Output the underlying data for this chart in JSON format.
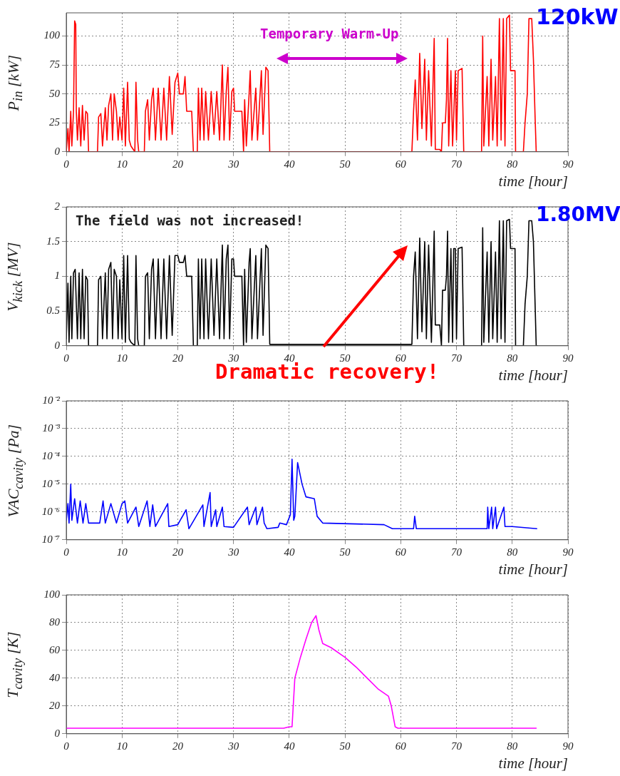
{
  "chart_data": [
    {
      "type": "line",
      "ylabel": "P$_{in}$ [kW]",
      "xlabel": "time [hour]",
      "annotations": [
        "Temporary Warm-Up",
        "120kW"
      ],
      "xlim": [
        0,
        90
      ],
      "xticks": [
        0,
        10,
        20,
        30,
        40,
        50,
        60,
        70,
        80,
        90
      ],
      "ylim": [
        0,
        120
      ],
      "yticks": [
        0,
        25,
        50,
        75,
        100
      ],
      "grid": true,
      "series": [
        {
          "color": "#ff0000",
          "x": [
            0,
            0.3,
            0.5,
            0.8,
            1,
            1.3,
            1.5,
            1.7,
            1.8,
            2,
            2.3,
            2.6,
            2.9,
            3.2,
            3.5,
            3.8,
            4,
            5.6,
            5.8,
            6.2,
            6.5,
            7,
            7.3,
            7.6,
            8,
            8.3,
            8.6,
            9,
            9.3,
            9.6,
            10,
            10.3,
            10.6,
            11,
            11.3,
            11.6,
            12.3,
            12.5,
            12.8,
            13,
            14,
            14.2,
            14.6,
            14.9,
            15.3,
            15.6,
            16,
            16.5,
            17,
            17.5,
            18,
            18.5,
            19,
            19.5,
            20,
            20.3,
            21,
            21.3,
            21.6,
            22.5,
            22.8,
            23.5,
            23.7,
            24,
            24.3,
            24.7,
            25,
            25.5,
            26,
            26.5,
            27,
            27.5,
            28,
            28.3,
            28.7,
            29,
            29.3,
            29.7,
            30,
            30.2,
            31.5,
            31.8,
            32,
            32.3,
            32.8,
            33,
            33.3,
            34,
            34.3,
            35,
            35.3,
            35.8,
            36.2,
            36.5,
            62,
            62.3,
            62.6,
            63,
            63.4,
            63.8,
            64.3,
            64.6,
            65,
            65.5,
            66,
            66.2,
            67,
            67.3,
            67.5,
            68,
            68.2,
            68.4,
            68.6,
            69,
            69.3,
            69.8,
            70,
            70.3,
            71,
            71.3,
            74.5,
            74.7,
            74.9,
            75.5,
            75.8,
            76.2,
            76.5,
            77,
            77.3,
            77.7,
            78,
            78.4,
            78.7,
            79,
            79.5,
            79.7,
            80.5,
            80.6,
            82,
            82.3,
            82.7,
            83,
            83.5,
            83.8,
            84.1,
            84.3,
            84.5
          ],
          "values": [
            0,
            20,
            0,
            35,
            5,
            35,
            113,
            110,
            35,
            10,
            38,
            5,
            40,
            10,
            35,
            33,
            0,
            0,
            30,
            33,
            5,
            38,
            10,
            40,
            50,
            10,
            50,
            35,
            10,
            30,
            10,
            55,
            5,
            60,
            10,
            5,
            0,
            60,
            10,
            0,
            0,
            35,
            45,
            10,
            45,
            55,
            10,
            55,
            10,
            55,
            10,
            65,
            15,
            60,
            68,
            50,
            50,
            65,
            35,
            35,
            0,
            0,
            55,
            10,
            55,
            10,
            52,
            10,
            52,
            15,
            52,
            10,
            75,
            10,
            52,
            73,
            10,
            52,
            55,
            35,
            35,
            0,
            45,
            5,
            50,
            70,
            10,
            55,
            10,
            70,
            15,
            73,
            70,
            0,
            0,
            35,
            62,
            10,
            85,
            20,
            80,
            10,
            70,
            5,
            98,
            2,
            2,
            0,
            25,
            25,
            45,
            98,
            5,
            70,
            5,
            70,
            10,
            70,
            72,
            0,
            0,
            100,
            5,
            65,
            5,
            80,
            10,
            65,
            5,
            115,
            10,
            115,
            5,
            115,
            118,
            70,
            70,
            0,
            0,
            25,
            50,
            115,
            115,
            80,
            30,
            0,
            0
          ]
        }
      ]
    },
    {
      "type": "line",
      "ylabel": "V$_{kick}$ [MV]",
      "xlabel": "time [hour]",
      "annotations": [
        "The field was not increased!",
        "1.80MV",
        "Dramatic recovery!"
      ],
      "xlim": [
        0,
        90
      ],
      "xticks": [
        0,
        10,
        20,
        30,
        40,
        50,
        60,
        70,
        80,
        90
      ],
      "ylim": [
        0,
        2
      ],
      "yticks": [
        0,
        0.5,
        1,
        1.5,
        2
      ],
      "grid": true,
      "series": [
        {
          "color": "#000000",
          "x": [
            0,
            0.3,
            0.5,
            0.8,
            1,
            1.3,
            1.6,
            2,
            2.3,
            2.6,
            2.9,
            3.2,
            3.5,
            3.8,
            4,
            5.6,
            5.8,
            6.2,
            6.5,
            7,
            7.3,
            7.6,
            8,
            8.3,
            8.6,
            9,
            9.3,
            9.6,
            10,
            10.3,
            10.6,
            11,
            11.3,
            11.6,
            12.3,
            12.5,
            12.8,
            13,
            14,
            14.2,
            14.6,
            14.9,
            15.3,
            15.6,
            16,
            16.5,
            17,
            17.5,
            18,
            18.5,
            19,
            19.5,
            20,
            20.3,
            21,
            21.3,
            21.6,
            22.5,
            22.8,
            23.5,
            23.7,
            24,
            24.3,
            24.7,
            25,
            25.5,
            26,
            26.5,
            27,
            27.5,
            28,
            28.3,
            28.7,
            29,
            29.3,
            29.7,
            30,
            30.2,
            31.5,
            31.8,
            32,
            32.3,
            32.8,
            33,
            33.3,
            34,
            34.3,
            35,
            35.3,
            35.8,
            36.2,
            36.5,
            50,
            62,
            62.3,
            62.6,
            63,
            63.4,
            63.8,
            64.3,
            64.6,
            65,
            65.5,
            66,
            66.2,
            67,
            67.3,
            67.5,
            68,
            68.2,
            68.4,
            68.6,
            69,
            69.3,
            69.5,
            69.8,
            70,
            70.3,
            71,
            71.3,
            74.5,
            74.7,
            74.9,
            75.5,
            75.8,
            76.2,
            76.5,
            77,
            77.3,
            77.7,
            78,
            78.4,
            78.7,
            79,
            79.5,
            79.7,
            80.5,
            80.6,
            82,
            82.3,
            82.7,
            83,
            83.5,
            83.8,
            84.1,
            84.3,
            84.5
          ],
          "values": [
            0.1,
            0.9,
            0.05,
            1,
            0.1,
            1.05,
            1.1,
            0.1,
            1.05,
            0.1,
            1.1,
            0.1,
            1,
            0.95,
            0,
            0,
            0.95,
            1,
            0.1,
            1.05,
            0.1,
            1.1,
            1.2,
            0.1,
            1.1,
            1,
            0.1,
            0.95,
            0.1,
            1.3,
            0.05,
            1.3,
            0.1,
            0.05,
            0,
            1.3,
            0.1,
            0,
            0,
            1,
            1.05,
            0.1,
            1.1,
            1.25,
            0.1,
            1.25,
            0.1,
            1.25,
            0.1,
            1.3,
            0.15,
            1.3,
            1.3,
            1.2,
            1.2,
            1.3,
            1,
            1,
            0,
            0,
            1.25,
            0.1,
            1.25,
            0.1,
            1.25,
            0.1,
            1.25,
            0.15,
            1.25,
            0.1,
            1.45,
            0.1,
            1.25,
            1.45,
            0.1,
            1.25,
            1.25,
            1,
            1,
            0,
            1.1,
            0.05,
            1.2,
            1.4,
            0.1,
            1.3,
            0.1,
            1.4,
            0.15,
            1.45,
            1.4,
            0.02,
            0.02,
            0.02,
            1,
            1.35,
            0.1,
            1.55,
            0.2,
            1.5,
            0.1,
            1.45,
            0.05,
            1.65,
            0.3,
            0.3,
            0,
            0.8,
            0.8,
            1,
            1.65,
            0.05,
            1.4,
            0.05,
            1.4,
            1.4,
            0.1,
            1.4,
            1.42,
            0,
            0,
            1.7,
            0.05,
            1.35,
            0.05,
            1.5,
            0.1,
            1.35,
            0.05,
            1.8,
            0.1,
            1.8,
            0.05,
            1.8,
            1.82,
            1.4,
            1.4,
            0,
            0,
            0.6,
            1,
            1.8,
            1.8,
            1.5,
            0.6,
            0,
            0
          ]
        }
      ]
    },
    {
      "type": "line",
      "ylabel": "VAC$_{cavity}$ [Pa]",
      "xlabel": "time [hour]",
      "log": "y",
      "xlim": [
        0,
        90
      ],
      "xticks": [
        0,
        10,
        20,
        30,
        40,
        50,
        60,
        70,
        80,
        90
      ],
      "ylim": [
        1e-07,
        0.01
      ],
      "yticks": [
        {
          "value": 1e-07,
          "label": "10⁻⁷"
        },
        {
          "value": 1e-06,
          "label": "10⁻⁶"
        },
        {
          "value": 1e-05,
          "label": "10⁻⁵"
        },
        {
          "value": 0.0001,
          "label": "10⁻⁴"
        },
        {
          "value": 0.001,
          "label": "10⁻³"
        },
        {
          "value": 0.01,
          "label": "10⁻²"
        }
      ],
      "grid": true,
      "series": [
        {
          "color": "#0000ff",
          "x": [
            0,
            0.3,
            0.5,
            0.8,
            1,
            1.5,
            2,
            2.5,
            3,
            3.5,
            4,
            6,
            6.6,
            7,
            8,
            9,
            10,
            10.5,
            11,
            12.5,
            13,
            14.5,
            15,
            15.5,
            16,
            18.2,
            18.4,
            20,
            21.5,
            22,
            24.5,
            24.7,
            25.8,
            26,
            26.8,
            27,
            28,
            28.3,
            30,
            32.5,
            32.8,
            34,
            34.2,
            35.2,
            35.5,
            36,
            38,
            38.3,
            39.5,
            40.2,
            40.5,
            40.8,
            41,
            41.5,
            42.3,
            43,
            44.5,
            45,
            46,
            57,
            58.5,
            62.3,
            62.5,
            62.8,
            71,
            75.5,
            75.6,
            75.8,
            76.3,
            76.5,
            77,
            77.2,
            78.5,
            78.7,
            80,
            84.4
          ],
          "values": [
            5e-07,
            2e-06,
            4e-07,
            1e-05,
            5e-07,
            3e-06,
            4e-07,
            2.5e-06,
            4e-07,
            2e-06,
            4e-07,
            4e-07,
            2.5e-06,
            4e-07,
            2e-06,
            4e-07,
            2e-06,
            2.5e-06,
            4e-07,
            1.5e-06,
            3e-07,
            2.5e-06,
            3e-07,
            1.8e-06,
            3e-07,
            2e-06,
            3e-07,
            3.5e-07,
            1.2e-06,
            2.5e-07,
            1.8e-06,
            3e-07,
            5e-06,
            3e-07,
            1.2e-06,
            3e-07,
            1.5e-06,
            3e-07,
            2.8e-07,
            1.5e-06,
            3.5e-07,
            1.5e-06,
            3.5e-07,
            1.5e-06,
            4e-07,
            2.5e-07,
            2.8e-07,
            4e-07,
            3.5e-07,
            8e-07,
            8e-05,
            5e-07,
            7e-07,
            6e-05,
            1e-05,
            3.5e-06,
            3e-06,
            7e-07,
            4e-07,
            3.5e-07,
            2.5e-07,
            2.5e-07,
            7e-07,
            2.5e-07,
            2.5e-07,
            2.5e-07,
            1.5e-06,
            2.5e-07,
            1.5e-06,
            2.5e-07,
            1.5e-06,
            2.5e-07,
            1.5e-06,
            3e-07,
            3e-07,
            2.5e-07
          ]
        }
      ]
    },
    {
      "type": "line",
      "ylabel": "T$_{cavity}$ [K]",
      "xlabel": "time [hour]",
      "xlim": [
        0,
        90
      ],
      "xticks": [
        0,
        10,
        20,
        30,
        40,
        50,
        60,
        70,
        80,
        90
      ],
      "ylim": [
        0,
        100
      ],
      "yticks": [
        0,
        20,
        40,
        60,
        80,
        100
      ],
      "grid": true,
      "series": [
        {
          "color": "#ff00ff",
          "x": [
            0,
            39,
            40,
            40.5,
            41,
            42,
            43,
            44,
            44.8,
            45.3,
            46,
            47.5,
            50,
            52,
            54,
            56,
            57.8,
            58.3,
            59,
            59.5,
            84.3
          ],
          "values": [
            4,
            4,
            5,
            5,
            40,
            55,
            68,
            80,
            85,
            75,
            65,
            62,
            55,
            48,
            40,
            32,
            27,
            20,
            5,
            4,
            4
          ]
        }
      ]
    }
  ]
}
